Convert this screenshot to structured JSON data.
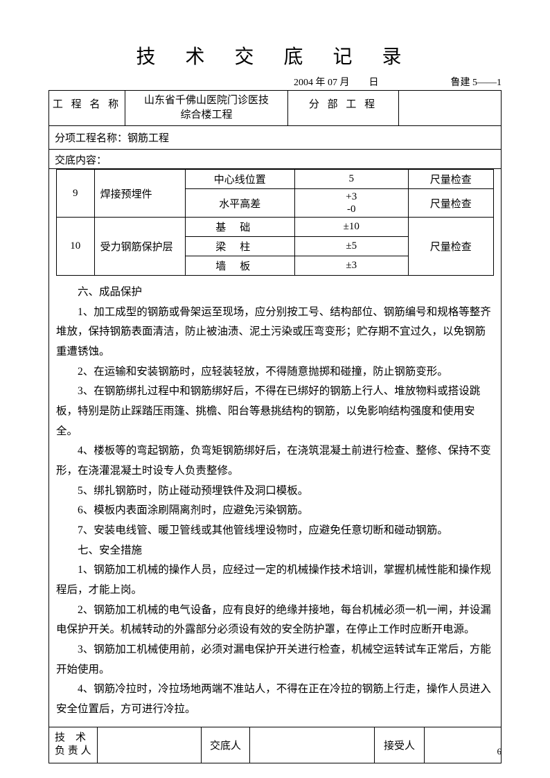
{
  "title": "技 术 交 底 记 录",
  "date": "2004 年 07 月　　日",
  "form_no": "鲁建 5——1",
  "header": {
    "label1": "工 程 名 称",
    "value1_line1": "山东省千佛山医院门诊医技",
    "value1_line2": "综合楼工程",
    "label2": "分 部 工 程",
    "value2": ""
  },
  "subproject": "分项工程名称：钢筋工程",
  "content_label": "交底内容：",
  "table": {
    "rows": [
      {
        "num": "9",
        "name": "焊接预埋件",
        "items": [
          {
            "item": "中心线位置",
            "val": "5",
            "chk": "尺量检查"
          },
          {
            "item": "水平高差",
            "val_l1": "+3",
            "val_l2": "-0",
            "chk": "尺量检查"
          }
        ]
      },
      {
        "num": "10",
        "name": "受力钢筋保护层",
        "chk_merged": "尺量检查",
        "items": [
          {
            "item": "基础",
            "val": "±10"
          },
          {
            "item": "梁柱",
            "val": "±5"
          },
          {
            "item": "墙板",
            "val": "±3"
          }
        ]
      }
    ]
  },
  "body": [
    "六、成品保护",
    "1、加工成型的钢筋或骨架运至现场，应分别按工号、结构部位、钢筋编号和规格等整齐堆放，保持钢筋表面清洁，防止被油渍、泥土污染或压弯变形；贮存期不宜过久，以免钢筋重遭锈蚀。",
    "2、在运输和安装钢筋时，应轻装轻放，不得随意抛掷和碰撞，防止钢筋变形。",
    "3、在钢筋绑扎过程中和钢筋绑好后，不得在已绑好的钢筋上行人、堆放物料或搭设跳板，特别是防止踩踏压雨篷、挑檐、阳台等悬挑结构的钢筋，以免影响结构强度和使用安全。",
    "4、楼板等的弯起钢筋，负弯矩钢筋绑好后，在浇筑混凝土前进行检查、整修、保持不变形，在浇灌混凝土时设专人负责整修。",
    "5、绑扎钢筋时，防止碰动预埋铁件及洞口模板。",
    "6、模板内表面涂刷隔离剂时，应避免污染钢筋。",
    "7、安装电线管、暖卫管线或其他管线埋设物时，应避免任意切断和碰动钢筋。",
    "七、安全措施",
    "1、钢筋加工机械的操作人员，应经过一定的机械操作技术培训，掌握机械性能和操作规程后，才能上岗。",
    "2、钢筋加工机械的电气设备，应有良好的绝缘并接地，每台机械必须一机一闸，并设漏电保护开关。机械转动的外露部分必须设有效的安全防护罩，在停止工作时应断开电源。",
    "3、钢筋加工机械使用前，必须对漏电保护开关进行检查，机械空运转试车正常后，方能开始使用。",
    "4、钢筋冷拉时，冷拉场地两端不准站人，不得在正在冷拉的钢筋上行走，操作人员进入安全位置后，方可进行冷拉。"
  ],
  "sign": {
    "l1": "技　术负 责 人",
    "l2": "交底人",
    "l3": "接受人"
  },
  "page_no": "6"
}
